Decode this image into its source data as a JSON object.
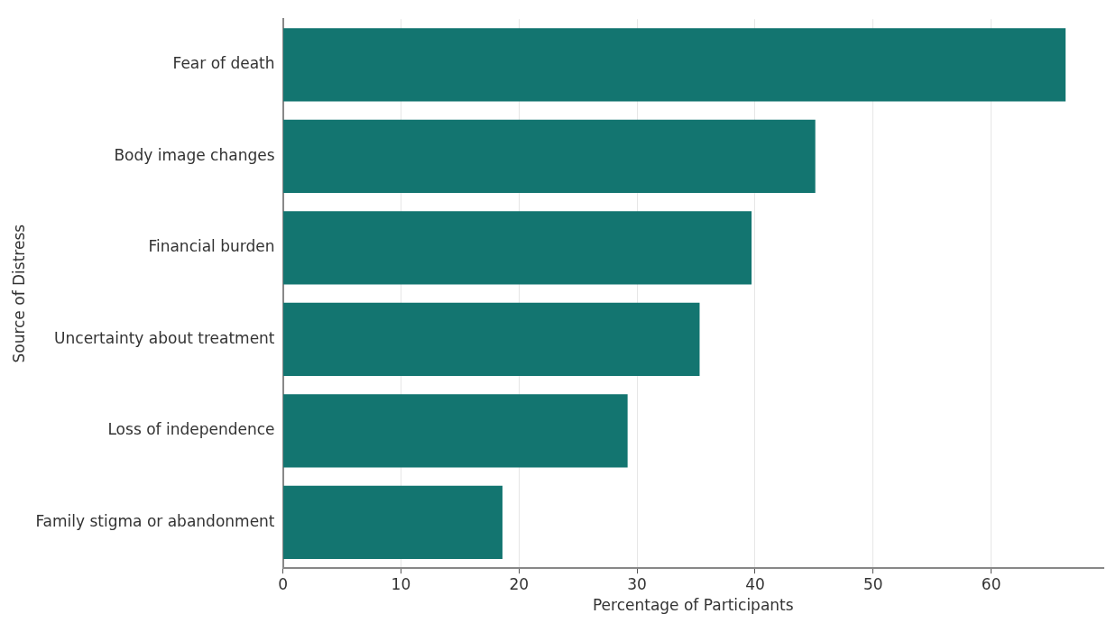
{
  "chart_data": {
    "type": "bar",
    "orientation": "horizontal",
    "xlabel": "Percentage of Participants",
    "ylabel": "Source of Distress",
    "categories": [
      "Fear of death",
      "Body image changes",
      "Financial burden",
      "Uncertainty about treatment",
      "Loss of independence",
      "Family stigma or abandonment"
    ],
    "values": [
      66.3,
      45.1,
      39.7,
      35.3,
      29.2,
      18.6
    ],
    "color": "#137570",
    "xlim": [
      0,
      69.5
    ],
    "xticks": [
      0,
      10,
      20,
      30,
      40,
      50,
      60
    ],
    "grid": "x"
  }
}
